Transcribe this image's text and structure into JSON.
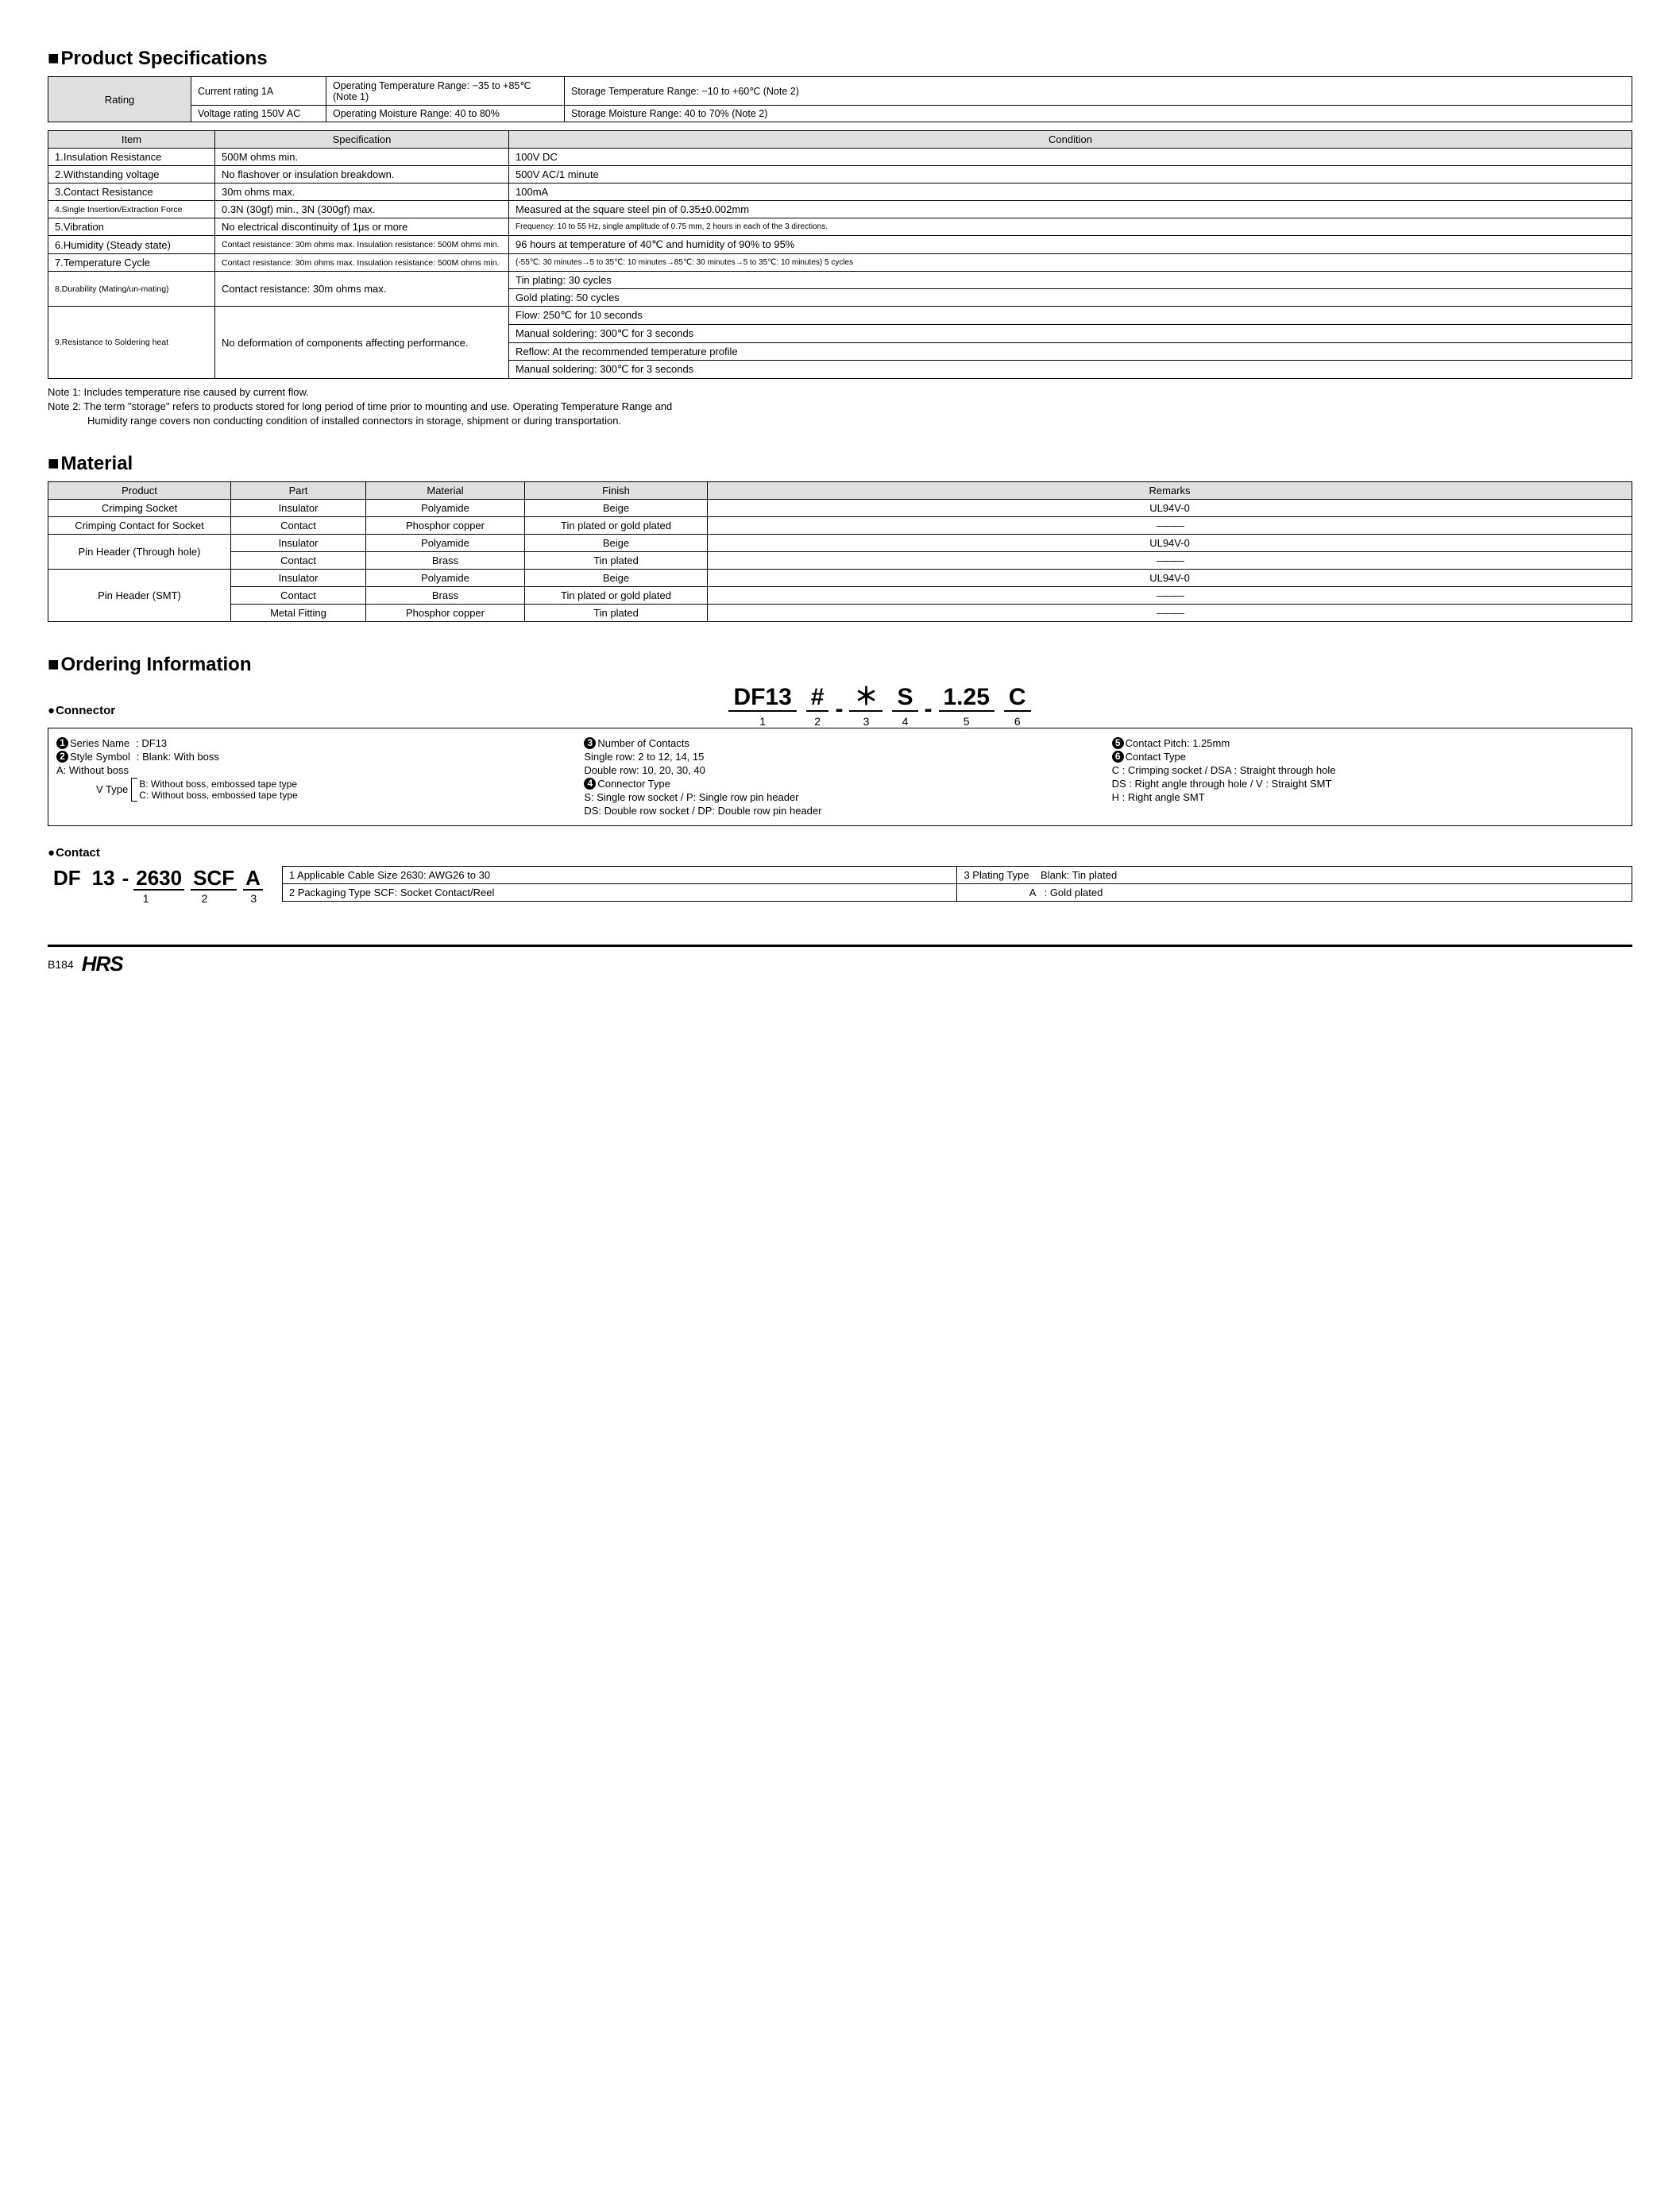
{
  "sections": {
    "specs_title": "Product Specifications",
    "material_title": "Material",
    "ordering_title": "Ordering Information"
  },
  "rating": {
    "header": "Rating",
    "current": "Current rating  1A",
    "voltage": "Voltage rating  150V AC",
    "op_temp": "Operating Temperature Range: −35 to +85℃ (Note 1)",
    "op_moist": "Operating Moisture Range: 40 to 80%",
    "st_temp": "Storage Temperature Range: −10 to +60℃ (Note 2)",
    "st_moist": "Storage Moisture Range: 40 to 70%        (Note 2)"
  },
  "spec_headers": {
    "item": "Item",
    "spec": "Specification",
    "cond": "Condition"
  },
  "specs": [
    {
      "item": "1.Insulation Resistance",
      "spec": "500M ohms min.",
      "cond": "100V DC"
    },
    {
      "item": "2.Withstanding voltage",
      "spec": "No flashover or insulation breakdown.",
      "cond": "500V AC/1 minute"
    },
    {
      "item": "3.Contact Resistance",
      "spec": "30m ohms max.",
      "cond": "100mA"
    },
    {
      "item": "4.Single Insertion/Extraction Force",
      "spec": "0.3N (30gf) min., 3N (300gf) max.",
      "cond": "Measured at the square steel pin of 0.35±0.002mm",
      "small_item": true
    },
    {
      "item": "5.Vibration",
      "spec": "No electrical discontinuity of 1μs or more",
      "cond": "Frequency: 10 to 55 Hz, single amplitude of 0.75 mm, 2 hours in each of the 3 directions.",
      "small_cond": true
    },
    {
      "item": "6.Humidity (Steady state)",
      "spec": "Contact resistance: 30m ohms max. Insulation resistance: 500M ohms min.",
      "cond": "96 hours at temperature of 40℃ and humidity of 90% to 95%",
      "small_spec": true
    },
    {
      "item": "7.Temperature Cycle",
      "spec": "Contact resistance: 30m ohms max. Insulation resistance: 500M ohms min.",
      "cond": "(-55℃: 30 minutes→5 to 35℃: 10 minutes→85℃: 30 minutes→5 to 35℃: 10 minutes) 5 cycles",
      "small_spec": true,
      "small_cond": true
    },
    {
      "item": "8.Durability (Mating/un-mating)",
      "spec": "Contact resistance: 30m ohms max.",
      "cond_rows": [
        "Tin plating: 30 cycles",
        "Gold plating: 50 cycles"
      ],
      "small_item": true
    },
    {
      "item": "9.Resistance to Soldering heat",
      "spec": "No deformation of components affecting performance.",
      "cond_rows": [
        "Flow: 250℃ for 10 seconds",
        "Manual soldering: 300℃ for 3 seconds",
        "Reflow: At the recommended temperature profile",
        "Manual soldering: 300℃ for 3 seconds"
      ],
      "small_item": true
    }
  ],
  "notes": {
    "n1": "Note 1: Includes temperature rise caused by current flow.",
    "n2": "Note 2: The term \"storage\" refers to products stored for long period of time prior to mounting and use. Operating Temperature Range and",
    "n2b": "Humidity range covers non conducting condition of installed connectors in storage, shipment or during transportation."
  },
  "material_headers": {
    "product": "Product",
    "part": "Part",
    "material": "Material",
    "finish": "Finish",
    "remarks": "Remarks"
  },
  "material": [
    {
      "product": "Crimping Socket",
      "part": "Insulator",
      "material": "Polyamide",
      "finish": "Beige",
      "remarks": "UL94V-0",
      "prspan": 1
    },
    {
      "product": "Crimping Contact for Socket",
      "part": "Contact",
      "material": "Phosphor copper",
      "finish": "Tin plated or gold plated",
      "remarks": "———",
      "prspan": 1
    },
    {
      "product": "Pin Header (Through hole)",
      "rows": [
        {
          "part": "Insulator",
          "material": "Polyamide",
          "finish": "Beige",
          "remarks": "UL94V-0"
        },
        {
          "part": "Contact",
          "material": "Brass",
          "finish": "Tin plated",
          "remarks": "———"
        }
      ]
    },
    {
      "product": "Pin Header (SMT)",
      "rows": [
        {
          "part": "Insulator",
          "material": "Polyamide",
          "finish": "Beige",
          "remarks": "UL94V-0"
        },
        {
          "part": "Contact",
          "material": "Brass",
          "finish": "Tin plated or gold plated",
          "remarks": "———"
        },
        {
          "part": "Metal Fitting",
          "material": "Phosphor copper",
          "finish": "Tin plated",
          "remarks": "———"
        }
      ]
    }
  ],
  "connector": {
    "bullet": "Connector",
    "segs": [
      "DF13",
      "#",
      "＊",
      "S",
      "1.25",
      "C"
    ],
    "legend": {
      "c1": [
        {
          "n": "1",
          "k": "Series Name",
          "v": ": DF13"
        },
        {
          "n": "2",
          "k": "Style Symbol",
          "v": ": Blank: With boss"
        },
        {
          "sub": "A: Without boss"
        },
        {
          "vtype_label": "V Type",
          "vtype_rows": [
            "B: Without boss, embossed tape type",
            "C: Without boss, embossed tape type"
          ]
        }
      ],
      "c2": [
        {
          "n": "3",
          "k": "Number of Contacts",
          "v": ""
        },
        {
          "sub": "Single row: 2 to 12, 14, 15"
        },
        {
          "sub": "Double row: 10, 20, 30, 40"
        },
        {
          "n": "4",
          "k": "Connector Type",
          "v": ""
        },
        {
          "sub": "S: Single row socket / P: Single row pin header"
        },
        {
          "sub": "DS: Double row socket / DP: Double row pin header"
        }
      ],
      "c3": [
        {
          "n": "5",
          "k": "Contact Pitch: 1.25mm",
          "v": ""
        },
        {
          "n": "6",
          "k": "Contact Type",
          "v": ""
        },
        {
          "sub": "C : Crimping socket / DSA : Straight through hole"
        },
        {
          "sub": "DS : Right angle through hole / V : Straight SMT"
        },
        {
          "sub": "H : Right angle SMT"
        }
      ]
    }
  },
  "contact": {
    "bullet": "Contact",
    "segs_pre": [
      "DF",
      "13"
    ],
    "segs": [
      "2630",
      "SCF",
      "A"
    ],
    "legend_rows": [
      {
        "left": {
          "n": "1",
          "t": "Applicable Cable Size  2630: AWG26 to 30"
        },
        "right": {
          "n": "3",
          "t": "Plating Type    Blank: Tin plated"
        }
      },
      {
        "left": {
          "n": "2",
          "t": "Packaging Type  SCF: Socket Contact/Reel"
        },
        "right": {
          "t": "A   : Gold plated",
          "indent": true
        }
      }
    ]
  },
  "footer": {
    "page": "B184",
    "logo": "HRS"
  }
}
